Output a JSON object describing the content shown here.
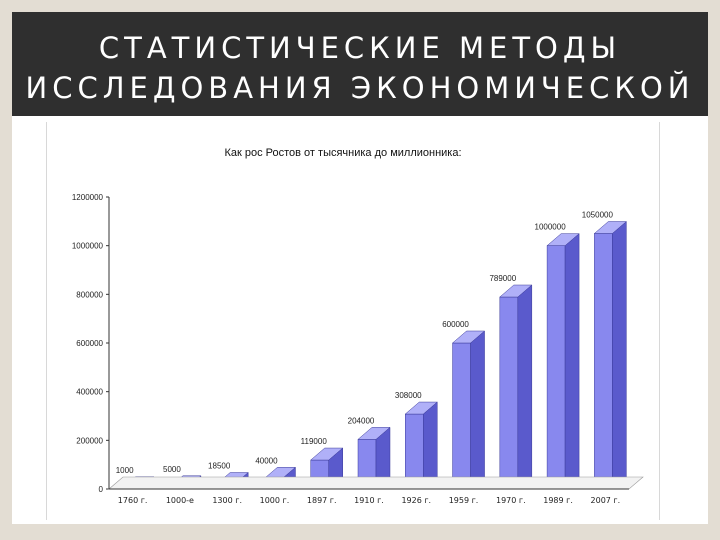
{
  "slide": {
    "title": "СТАТИСТИЧЕСКИЕ МЕТОДЫ ИССЛЕДОВАНИЯ ЭКОНОМИЧЕСКОЙ"
  },
  "colors": {
    "title_bar": "#2f2f2f",
    "background": "#e3ddd3",
    "bar_front": "#8888ee",
    "bar_side": "#5a5acc",
    "bar_top": "#b0b0f8"
  },
  "chart_data": {
    "type": "bar",
    "title": "Как рос Ростов от тысячника до миллионника:",
    "xlabel": "",
    "ylabel": "",
    "ylim": [
      0,
      1200000
    ],
    "yticks": [
      "0",
      "200000",
      "400000",
      "600000",
      "800000",
      "1000000",
      "1200000"
    ],
    "grid": false,
    "categories": [
      "1760 г.",
      "1000-е",
      "1300 г.",
      "1000 г.",
      "1897 г.",
      "1910 г.",
      "1926 г.",
      "1959 г.",
      "1970 г.",
      "1989 г.",
      "2007 г."
    ],
    "values": [
      1000,
      5000,
      18500,
      40000,
      119000,
      204000,
      308000,
      600000,
      789000,
      1000000,
      1050000
    ],
    "data_labels": [
      "1000",
      "5000",
      "18500",
      "40000",
      "119000",
      "204000",
      "308000",
      "600000",
      "789000",
      "1000000",
      "1050000"
    ],
    "series": [
      {
        "values": [
          1000,
          5000,
          18500,
          40000,
          119000,
          204000,
          308000,
          600000,
          789000,
          1000000,
          1050000
        ]
      }
    ]
  }
}
